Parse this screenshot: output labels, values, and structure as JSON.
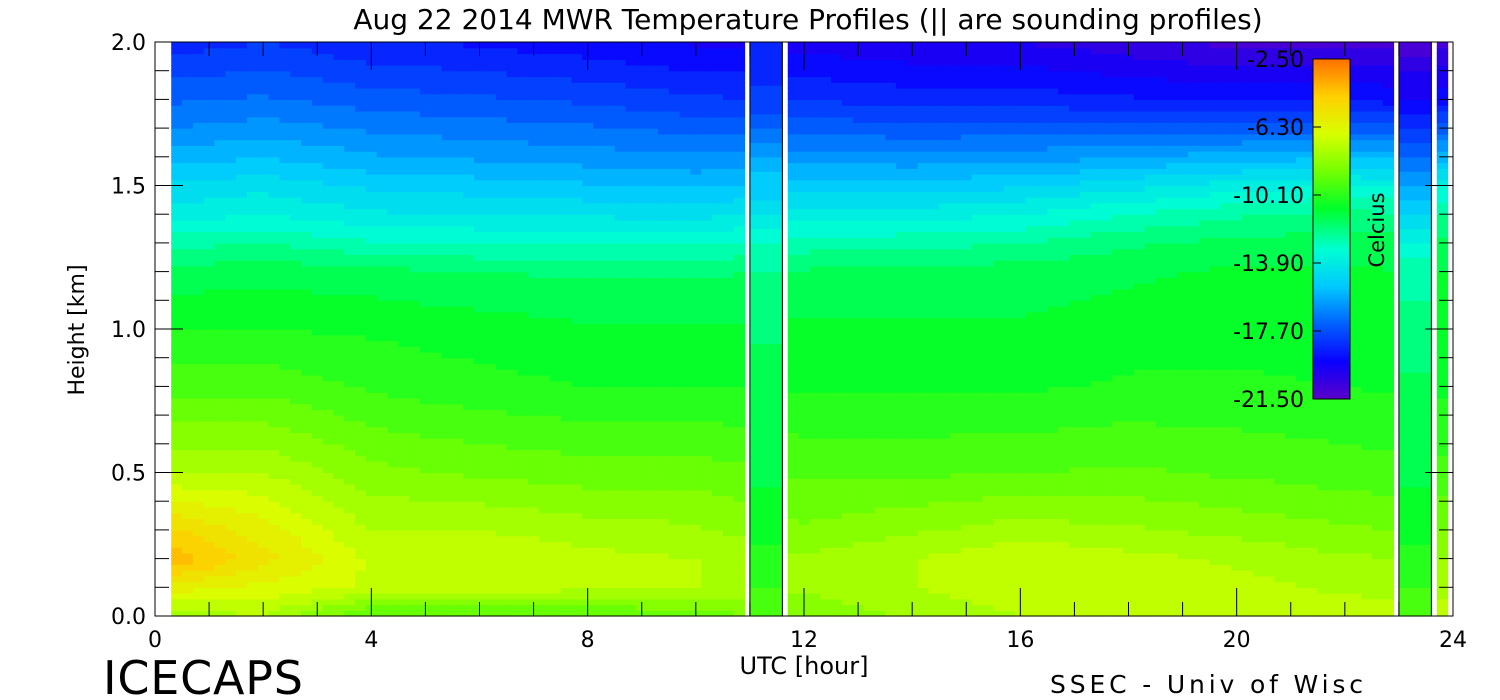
{
  "chart_data": {
    "type": "heatmap",
    "title": "Aug 22 2014 MWR Temperature Profiles (|| are sounding profiles)",
    "xlabel": "UTC [hour]",
    "ylabel": "Height [km]",
    "xlim": [
      0,
      24
    ],
    "ylim": [
      0,
      2.0
    ],
    "x_ticks": [
      "0",
      "4",
      "8",
      "12",
      "16",
      "20",
      "24"
    ],
    "y_ticks": [
      "0.0",
      "0.5",
      "1.0",
      "1.5",
      "2.0"
    ],
    "colorbar": {
      "label": "Celcius",
      "ticks": [
        "-2.50",
        "-6.30",
        "-10.10",
        "-13.90",
        "-17.70",
        "-21.50"
      ],
      "range": [
        -21.5,
        -2.5
      ]
    },
    "grid": false,
    "data_start_hour": 0.3,
    "sounding_profiles": [
      {
        "hour_start": 11.0,
        "hour_end": 11.6,
        "values": [
          -9.5,
          -10.0,
          -10.4,
          -10.8,
          -11.2,
          -11.5,
          -11.8,
          -12.2,
          -13.0,
          -14.0,
          -15.0,
          -16.0,
          -17.0,
          -18.0,
          -19.0
        ]
      },
      {
        "hour_start": 23.0,
        "hour_end": 23.6,
        "values": [
          -9.6,
          -10.0,
          -10.4,
          -10.8,
          -11.2,
          -11.6,
          -12.0,
          -12.5,
          -13.3,
          -14.5,
          -15.7,
          -17.0,
          -18.2,
          -19.5,
          -21.0
        ]
      }
    ],
    "heights": [
      0.0,
      0.1,
      0.2,
      0.3,
      0.5,
      0.8,
      1.0,
      1.2,
      1.3,
      1.4,
      1.5,
      1.6,
      1.7,
      1.8,
      2.0
    ],
    "hours": [
      0.3,
      2,
      4,
      6,
      8,
      10,
      12,
      14,
      16,
      18,
      20,
      22,
      23
    ],
    "values": [
      [
        -8.0,
        -6.0,
        -4.0,
        -5.0,
        -7.5,
        -9.5,
        -10.5,
        -11.5,
        -12.5,
        -13.8,
        -14.6,
        -15.6,
        -16.5,
        -17.2,
        -18.6
      ],
      [
        -7.5,
        -6.5,
        -5.5,
        -6.0,
        -7.5,
        -9.5,
        -10.5,
        -11.3,
        -12.3,
        -13.5,
        -14.3,
        -15.3,
        -16.2,
        -17.0,
        -18.3
      ],
      [
        -9.5,
        -7.0,
        -7.0,
        -7.5,
        -8.5,
        -10.0,
        -10.6,
        -11.5,
        -12.8,
        -14.0,
        -14.8,
        -15.8,
        -16.6,
        -17.4,
        -18.8
      ],
      [
        -9.5,
        -7.2,
        -7.0,
        -7.5,
        -8.8,
        -10.3,
        -10.8,
        -11.7,
        -12.9,
        -14.1,
        -15.0,
        -16.0,
        -16.8,
        -17.6,
        -19.0
      ],
      [
        -9.5,
        -7.3,
        -7.3,
        -7.8,
        -9.0,
        -10.5,
        -11.0,
        -11.8,
        -13.0,
        -14.2,
        -15.2,
        -16.2,
        -17.0,
        -17.8,
        -19.3
      ],
      [
        -9.0,
        -7.5,
        -7.5,
        -8.0,
        -9.0,
        -10.5,
        -11.0,
        -11.8,
        -13.0,
        -14.3,
        -15.4,
        -16.4,
        -17.3,
        -18.2,
        -19.6
      ],
      [
        -8.5,
        -8.0,
        -8.0,
        -8.6,
        -9.4,
        -10.6,
        -11.0,
        -11.6,
        -12.6,
        -13.8,
        -15.0,
        -16.2,
        -17.3,
        -18.3,
        -19.8
      ],
      [
        -8.0,
        -7.5,
        -7.5,
        -8.2,
        -9.4,
        -10.6,
        -11.0,
        -11.5,
        -12.5,
        -13.8,
        -15.0,
        -16.3,
        -17.5,
        -18.6,
        -20.0
      ],
      [
        -7.5,
        -7.0,
        -7.0,
        -7.8,
        -9.3,
        -10.6,
        -11.0,
        -11.4,
        -12.3,
        -13.5,
        -14.8,
        -16.2,
        -17.4,
        -18.6,
        -20.1
      ],
      [
        -7.5,
        -7.2,
        -7.3,
        -8.0,
        -9.2,
        -10.4,
        -10.8,
        -11.2,
        -11.8,
        -12.9,
        -14.3,
        -15.9,
        -17.4,
        -18.8,
        -20.5
      ],
      [
        -7.0,
        -7.3,
        -7.6,
        -8.3,
        -9.4,
        -10.4,
        -10.7,
        -11.0,
        -11.5,
        -12.4,
        -13.8,
        -15.6,
        -17.4,
        -19.0,
        -20.9
      ],
      [
        -7.2,
        -7.6,
        -8.0,
        -8.6,
        -9.6,
        -10.5,
        -10.8,
        -11.0,
        -11.4,
        -12.1,
        -13.5,
        -15.4,
        -17.3,
        -19.0,
        -20.8
      ],
      [
        -7.3,
        -7.7,
        -8.1,
        -8.7,
        -9.7,
        -10.6,
        -10.9,
        -11.1,
        -11.5,
        -12.2,
        -13.6,
        -15.5,
        -17.4,
        -19.1,
        -20.8
      ]
    ]
  },
  "footer": {
    "left": "ICECAPS",
    "right": "SSEC - Univ of Wisc"
  },
  "colors": {
    "background": "#ffffff",
    "axis": "#000000"
  }
}
